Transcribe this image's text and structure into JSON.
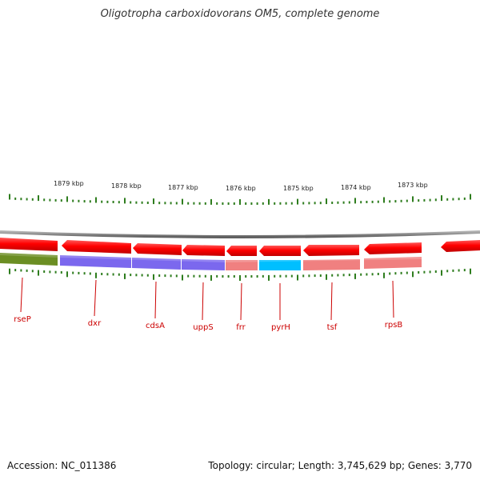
{
  "title": "Oligotropha carboxidovorans OM5, complete genome",
  "footer": {
    "accession": "Accession: NC_011386",
    "topology": "Topology: circular; Length: 3,745,629 bp; Genes: 3,770"
  },
  "scale_labels": [
    "1879 kbp",
    "1878 kbp",
    "1877 kbp",
    "1876 kbp",
    "1875 kbp",
    "1874 kbp",
    "1873 kbp"
  ],
  "genes": [
    {
      "name": "rseP",
      "color": "#6b8e23"
    },
    {
      "name": "dxr",
      "color": "#7b68ee"
    },
    {
      "name": "cdsA",
      "color": "#7b68ee"
    },
    {
      "name": "uppS",
      "color": "#7b68ee"
    },
    {
      "name": "frr",
      "color": "#f08080"
    },
    {
      "name": "pyrH",
      "color": "#00bfff"
    },
    {
      "name": "tsf",
      "color": "#f08080"
    },
    {
      "name": "rpsB",
      "color": "#f08080"
    }
  ],
  "colors": {
    "strand_arrow": "#ff0000",
    "backbone": "#808080",
    "tick": "#2e7d1e",
    "gene_label": "#cc0000"
  }
}
